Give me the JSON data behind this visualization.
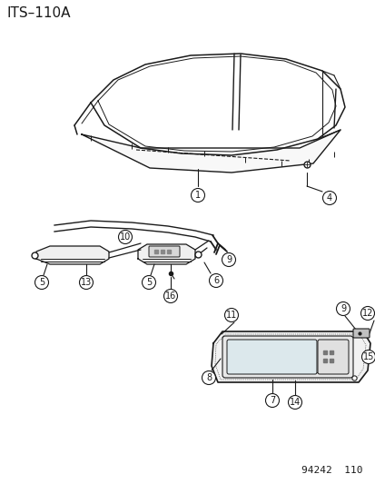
{
  "title": "ITS–110A",
  "footer": "94242  110",
  "bg_color": "#ffffff",
  "line_color": "#1a1a1a",
  "title_fontsize": 11,
  "footer_fontsize": 8
}
